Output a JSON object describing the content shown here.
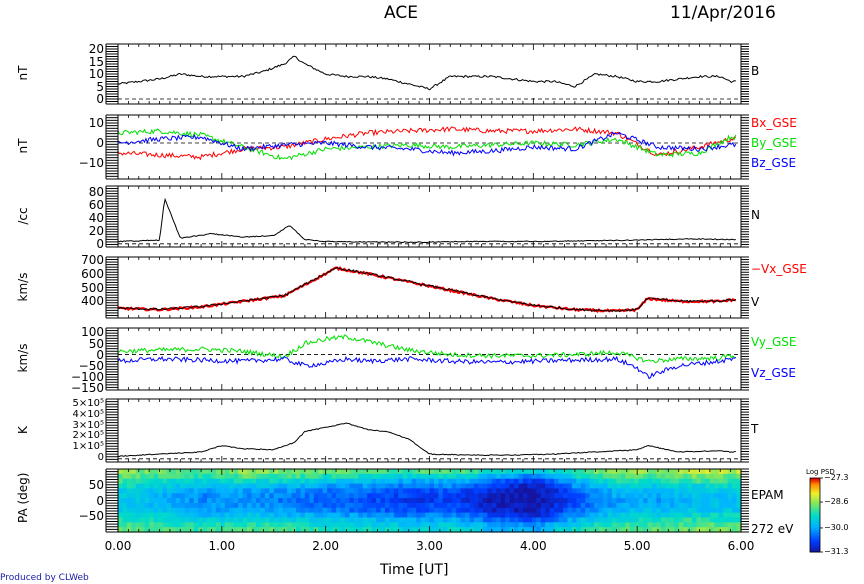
{
  "header": {
    "title": "ACE",
    "date": "11/Apr/2016"
  },
  "footer": {
    "xlabel": "Time [UT]",
    "credit": "Produced by CLWeb"
  },
  "colors": {
    "red": "#ff0000",
    "green": "#00e000",
    "blue": "#0000ff",
    "black": "#000000"
  },
  "chart_data": [
    {
      "type": "line",
      "panel": "B",
      "ylabel": "nT",
      "ylim": [
        -2,
        22
      ],
      "yticks": [
        "20",
        "15",
        "10",
        "5",
        "0"
      ],
      "ytick_values": [
        20,
        15,
        10,
        5,
        0
      ],
      "zero_line": true,
      "series": [
        {
          "name": "B",
          "color": "black",
          "x": [
            0,
            0.2,
            0.4,
            0.6,
            0.8,
            1.0,
            1.2,
            1.4,
            1.6,
            1.7,
            1.8,
            2.0,
            2.2,
            2.4,
            2.6,
            2.8,
            3.0,
            3.2,
            3.4,
            3.6,
            3.8,
            4.0,
            4.2,
            4.4,
            4.6,
            4.8,
            5.0,
            5.2,
            5.4,
            5.6,
            5.8,
            5.9
          ],
          "values": [
            6,
            7,
            8,
            10,
            9,
            9,
            9,
            11,
            14,
            17,
            14,
            10,
            9,
            9,
            8,
            6,
            4,
            9,
            9,
            9,
            8,
            7,
            7,
            5,
            10,
            9,
            7,
            7,
            8,
            9,
            9,
            7
          ]
        }
      ]
    },
    {
      "type": "line",
      "panel": "B_GSE",
      "ylabel": "nT",
      "ylim": [
        -18,
        14
      ],
      "yticks": [
        "10",
        "0",
        "−10"
      ],
      "ytick_values": [
        10,
        0,
        -10
      ],
      "zero_line": true,
      "series": [
        {
          "name": "Bx_GSE",
          "color": "red",
          "x": [
            0,
            0.4,
            0.8,
            1.2,
            1.6,
            2.0,
            2.4,
            2.8,
            3.2,
            3.6,
            4.0,
            4.4,
            4.8,
            5.2,
            5.6,
            5.9
          ],
          "values": [
            -5,
            -6,
            -7,
            -3,
            -2,
            2,
            5,
            6,
            7,
            6,
            6,
            7,
            5,
            -6,
            -2,
            2
          ]
        },
        {
          "name": "By_GSE",
          "color": "green",
          "x": [
            0,
            0.4,
            0.8,
            1.2,
            1.6,
            2.0,
            2.4,
            2.8,
            3.2,
            3.6,
            4.0,
            4.4,
            4.8,
            5.2,
            5.6,
            5.9
          ],
          "values": [
            5,
            6,
            4,
            -2,
            -8,
            -3,
            -2,
            -1,
            -2,
            -1,
            0,
            -1,
            2,
            -6,
            -5,
            3
          ]
        },
        {
          "name": "Bz_GSE",
          "color": "blue",
          "x": [
            0,
            0.4,
            0.8,
            1.2,
            1.6,
            2.0,
            2.4,
            2.8,
            3.2,
            3.6,
            4.0,
            4.4,
            4.8,
            5.2,
            5.6,
            5.9
          ],
          "values": [
            0,
            2,
            3,
            -3,
            -1,
            0,
            -2,
            -3,
            -5,
            -4,
            -2,
            -3,
            5,
            -2,
            -3,
            -1
          ]
        }
      ]
    },
    {
      "type": "line",
      "panel": "N",
      "ylabel": "/cc",
      "ylim": [
        -5,
        90
      ],
      "yticks": [
        "80",
        "60",
        "40",
        "20",
        "0"
      ],
      "ytick_values": [
        80,
        60,
        40,
        20,
        0
      ],
      "zero_line": true,
      "series": [
        {
          "name": "N",
          "color": "black",
          "x": [
            0,
            0.2,
            0.4,
            0.45,
            0.6,
            0.9,
            1.2,
            1.5,
            1.65,
            1.8,
            2.0,
            2.5,
            3.0,
            3.5,
            4.0,
            4.5,
            5.0,
            5.5,
            5.9
          ],
          "values": [
            3,
            4,
            5,
            70,
            8,
            15,
            10,
            12,
            28,
            6,
            3,
            2,
            2,
            3,
            3,
            4,
            5,
            7,
            6
          ]
        }
      ]
    },
    {
      "type": "line",
      "panel": "V",
      "ylabel": "km/s",
      "ylim": [
        280,
        720
      ],
      "yticks": [
        "700",
        "600",
        "500",
        "400"
      ],
      "ytick_values": [
        700,
        600,
        500,
        400
      ],
      "series": [
        {
          "name": "−Vx_GSE",
          "color": "red",
          "x": [
            0,
            0.4,
            0.8,
            1.2,
            1.6,
            1.8,
            2.0,
            2.1,
            2.4,
            2.8,
            3.2,
            3.6,
            4.0,
            4.4,
            4.8,
            5.0,
            5.1,
            5.4,
            5.8,
            5.9
          ],
          "values": [
            350,
            340,
            360,
            400,
            440,
            520,
            600,
            640,
            600,
            540,
            480,
            420,
            370,
            340,
            330,
            340,
            420,
            400,
            400,
            410
          ]
        },
        {
          "name": "V",
          "color": "black",
          "x": [
            0,
            0.4,
            0.8,
            1.2,
            1.6,
            1.8,
            2.0,
            2.1,
            2.4,
            2.8,
            3.2,
            3.6,
            4.0,
            4.4,
            4.8,
            5.0,
            5.1,
            5.4,
            5.8,
            5.9
          ],
          "values": [
            352,
            342,
            362,
            402,
            442,
            522,
            602,
            642,
            602,
            542,
            482,
            422,
            372,
            342,
            332,
            342,
            422,
            402,
            402,
            412
          ]
        }
      ]
    },
    {
      "type": "line",
      "panel": "Vyz",
      "ylabel": "km/s",
      "ylim": [
        -160,
        120
      ],
      "yticks": [
        "100",
        "50",
        "0",
        "−50",
        "−100",
        "−150"
      ],
      "ytick_values": [
        100,
        50,
        0,
        -50,
        -100,
        -150
      ],
      "zero_line": true,
      "series": [
        {
          "name": "Vy_GSE",
          "color": "green",
          "x": [
            0,
            0.4,
            0.8,
            1.2,
            1.6,
            1.8,
            2.0,
            2.2,
            2.4,
            2.8,
            3.2,
            3.6,
            4.0,
            4.4,
            4.8,
            5.0,
            5.1,
            5.4,
            5.8,
            5.9
          ],
          "values": [
            15,
            20,
            25,
            15,
            -10,
            50,
            70,
            80,
            60,
            20,
            0,
            -5,
            -5,
            0,
            10,
            -15,
            -30,
            -20,
            -15,
            -5
          ]
        },
        {
          "name": "Vz_GSE",
          "color": "blue",
          "x": [
            0,
            0.4,
            0.8,
            1.2,
            1.6,
            1.8,
            2.0,
            2.2,
            2.4,
            2.8,
            3.2,
            3.6,
            4.0,
            4.4,
            4.8,
            5.0,
            5.1,
            5.4,
            5.8,
            5.9
          ],
          "values": [
            -30,
            -20,
            -25,
            -30,
            -20,
            -50,
            -40,
            -20,
            -30,
            -20,
            -30,
            -35,
            -30,
            -25,
            -20,
            -60,
            -100,
            -50,
            -30,
            -20
          ]
        }
      ]
    },
    {
      "type": "line",
      "panel": "T",
      "ylabel": "K",
      "ylim": [
        -30000,
        560000
      ],
      "yticks": [
        "5×10⁵",
        "4×10⁵",
        "3×10⁵",
        "2×10⁵",
        "1×10⁵",
        "0"
      ],
      "ytick_values": [
        500000,
        400000,
        300000,
        200000,
        100000,
        0
      ],
      "zero_line": true,
      "series": [
        {
          "name": "T",
          "color": "black",
          "x": [
            0,
            0.4,
            0.8,
            1.0,
            1.2,
            1.5,
            1.7,
            1.8,
            2.0,
            2.2,
            2.4,
            2.6,
            2.8,
            3.0,
            3.4,
            3.8,
            4.2,
            4.6,
            5.0,
            5.1,
            5.4,
            5.8,
            5.9
          ],
          "values": [
            20000,
            40000,
            60000,
            120000,
            90000,
            80000,
            150000,
            250000,
            290000,
            330000,
            270000,
            250000,
            180000,
            40000,
            30000,
            30000,
            40000,
            60000,
            80000,
            120000,
            60000,
            70000,
            60000
          ]
        }
      ]
    },
    {
      "type": "heatmap",
      "panel": "EPAM",
      "ylabel": "PA (deg)",
      "ylim": [
        -100,
        100
      ],
      "yticks": [
        "50",
        "0",
        "−50"
      ],
      "ytick_values": [
        50,
        0,
        -50
      ],
      "xlabel": "Time [UT]",
      "xlim": [
        0,
        6
      ],
      "xticks": [
        "0.00",
        "1.00",
        "2.00",
        "3.00",
        "4.00",
        "5.00",
        "6.00"
      ],
      "xtick_values": [
        0,
        1,
        2,
        3,
        4,
        5,
        6
      ],
      "right_labels": [
        "EPAM",
        "272 eV"
      ],
      "colorbar": {
        "label": "Log PSD",
        "min": -31.3,
        "max": -27.3,
        "ticks": [
          "−27.3",
          "−28.6",
          "−30.0",
          "−31.3"
        ],
        "tick_values": [
          -27.3,
          -28.6,
          -30.0,
          -31.3
        ]
      },
      "rows_pa": [
        90,
        75,
        60,
        45,
        30,
        15,
        0,
        -15,
        -30,
        -45,
        -60,
        -75,
        -90
      ],
      "cols_time": [
        0.0,
        0.4,
        0.8,
        1.2,
        1.6,
        2.0,
        2.4,
        2.8,
        3.2,
        3.6,
        4.0,
        4.4,
        4.8,
        5.2,
        5.6,
        5.9
      ],
      "values": [
        [
          -28.6,
          -28.8,
          -28.9,
          -28.6,
          -28.7,
          -28.8,
          -28.9,
          -29.0,
          -28.9,
          -29.2,
          -29.6,
          -29.0,
          -28.5,
          -28.7,
          -28.3,
          -28.4
        ],
        [
          -28.8,
          -29.0,
          -29.2,
          -28.9,
          -29.0,
          -29.2,
          -29.3,
          -29.5,
          -29.4,
          -29.9,
          -30.3,
          -29.4,
          -28.9,
          -29.0,
          -28.7,
          -28.8
        ],
        [
          -29.0,
          -29.3,
          -29.5,
          -29.3,
          -29.4,
          -29.6,
          -29.7,
          -30.0,
          -29.8,
          -30.4,
          -30.8,
          -29.8,
          -29.2,
          -29.3,
          -29.0,
          -29.1
        ],
        [
          -29.3,
          -29.5,
          -29.8,
          -29.7,
          -29.8,
          -30.0,
          -30.1,
          -30.3,
          -30.2,
          -30.8,
          -31.1,
          -30.1,
          -29.5,
          -29.6,
          -29.4,
          -29.4
        ],
        [
          -29.5,
          -29.7,
          -30.0,
          -30.0,
          -30.1,
          -30.3,
          -30.4,
          -30.6,
          -30.5,
          -31.0,
          -31.3,
          -30.4,
          -29.8,
          -29.8,
          -29.6,
          -29.6
        ],
        [
          -29.6,
          -29.8,
          -30.2,
          -30.1,
          -30.2,
          -30.4,
          -30.5,
          -30.7,
          -30.6,
          -31.1,
          -31.3,
          -30.5,
          -29.9,
          -29.9,
          -29.7,
          -29.7
        ],
        [
          -29.6,
          -29.8,
          -30.2,
          -30.2,
          -30.3,
          -30.5,
          -30.6,
          -30.8,
          -30.7,
          -31.2,
          -31.3,
          -30.6,
          -30.0,
          -30.0,
          -29.8,
          -29.7
        ],
        [
          -29.6,
          -29.8,
          -30.1,
          -30.1,
          -30.2,
          -30.4,
          -30.5,
          -30.7,
          -30.6,
          -31.1,
          -31.3,
          -30.5,
          -29.9,
          -29.9,
          -29.7,
          -29.7
        ],
        [
          -29.5,
          -29.7,
          -30.0,
          -30.0,
          -30.1,
          -30.3,
          -30.4,
          -30.6,
          -30.5,
          -31.0,
          -31.2,
          -30.4,
          -29.8,
          -29.8,
          -29.6,
          -29.6
        ],
        [
          -29.3,
          -29.5,
          -29.8,
          -29.7,
          -29.8,
          -30.0,
          -30.1,
          -30.3,
          -30.2,
          -30.7,
          -31.0,
          -30.1,
          -29.6,
          -29.6,
          -29.4,
          -29.4
        ],
        [
          -29.1,
          -29.3,
          -29.5,
          -29.4,
          -29.5,
          -29.7,
          -29.8,
          -30.0,
          -29.9,
          -30.4,
          -30.6,
          -29.8,
          -29.3,
          -29.3,
          -29.1,
          -29.2
        ],
        [
          -29.0,
          -29.1,
          -29.3,
          -29.1,
          -29.2,
          -29.4,
          -29.5,
          -29.7,
          -29.6,
          -30.0,
          -30.2,
          -29.5,
          -29.1,
          -29.1,
          -28.9,
          -29.0
        ],
        [
          -28.9,
          -29.0,
          -29.1,
          -28.9,
          -29.0,
          -29.2,
          -29.3,
          -29.5,
          -29.4,
          -29.8,
          -30.0,
          -29.3,
          -28.9,
          -28.9,
          -28.7,
          -28.8
        ]
      ]
    }
  ]
}
